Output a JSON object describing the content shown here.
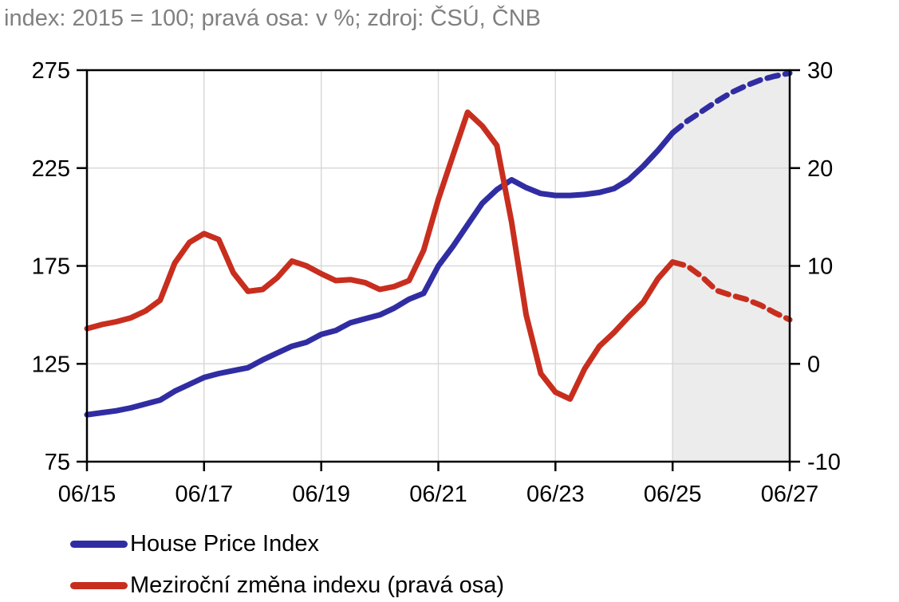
{
  "header": {
    "title": "index: 2015 = 100; pravá osa: v %; zdroj: ČSÚ, ČNB",
    "title_color": "#808080"
  },
  "chart_data": {
    "type": "line",
    "title": "index: 2015 = 100; pravá osa: v %; zdroj: ČSÚ, ČNB",
    "grid": true,
    "grid_color": "#d9d9d9",
    "axis_color": "#000000",
    "background_color": "#ffffff",
    "legend_position": "bottom-left",
    "quarters": [
      "06/15",
      "09/15",
      "12/15",
      "03/16",
      "06/16",
      "09/16",
      "12/16",
      "03/17",
      "06/17",
      "09/17",
      "12/17",
      "03/18",
      "06/18",
      "09/18",
      "12/18",
      "03/19",
      "06/19",
      "09/19",
      "12/19",
      "03/20",
      "06/20",
      "09/20",
      "12/20",
      "03/21",
      "06/21",
      "09/21",
      "12/21",
      "03/22",
      "06/22",
      "09/22",
      "12/22",
      "03/23",
      "06/23",
      "09/23",
      "12/23",
      "03/24",
      "06/24",
      "09/24",
      "12/24",
      "03/25",
      "06/25",
      "09/25",
      "12/25",
      "03/26",
      "06/26",
      "09/26",
      "12/26",
      "03/27",
      "06/27"
    ],
    "x_tick_labels": [
      "06/15",
      "06/17",
      "06/19",
      "06/21",
      "06/23",
      "06/25",
      "06/27"
    ],
    "left_axis": {
      "ticks": [
        275,
        225,
        175,
        125,
        75
      ],
      "range": [
        75,
        275
      ]
    },
    "right_axis": {
      "ticks": [
        30,
        20,
        10,
        0,
        -10
      ],
      "range": [
        -10,
        30
      ],
      "unit": "%"
    },
    "forecast": {
      "start_quarter": "06/25",
      "end_quarter": "06/27",
      "shade_color": "#ececec",
      "line_style": "dashed"
    },
    "series": [
      {
        "name": "House Price Index",
        "axis": "left",
        "color": "#302da3",
        "values": [
          99,
          100,
          101,
          102.5,
          104.5,
          106.5,
          111,
          114.5,
          118,
          120,
          121.5,
          123,
          127,
          130.5,
          134,
          136,
          140,
          142,
          146,
          148,
          150,
          153.5,
          158,
          161,
          175,
          185,
          196,
          207,
          214,
          219,
          215,
          212,
          211,
          211,
          211.5,
          212.5,
          214.5,
          219,
          226,
          234,
          243,
          249,
          254,
          259,
          263.5,
          267,
          270,
          272,
          273.5
        ]
      },
      {
        "name": "Meziroční změna indexu (pravá osa)",
        "axis": "right",
        "color": "#c82e1e",
        "values": [
          3.6,
          4.0,
          4.3,
          4.7,
          5.4,
          6.5,
          10.3,
          12.4,
          13.3,
          12.7,
          9.3,
          7.4,
          7.6,
          8.8,
          10.5,
          10.0,
          9.2,
          8.5,
          8.6,
          8.3,
          7.6,
          7.9,
          8.5,
          11.6,
          16.8,
          21.3,
          25.7,
          24.3,
          22.3,
          14.5,
          5.0,
          -1.0,
          -2.9,
          -3.6,
          -0.5,
          1.8,
          3.2,
          4.8,
          6.3,
          8.7,
          10.4,
          10.0,
          8.9,
          7.5,
          7.0,
          6.6,
          6.0,
          5.2,
          4.5
        ]
      }
    ]
  }
}
